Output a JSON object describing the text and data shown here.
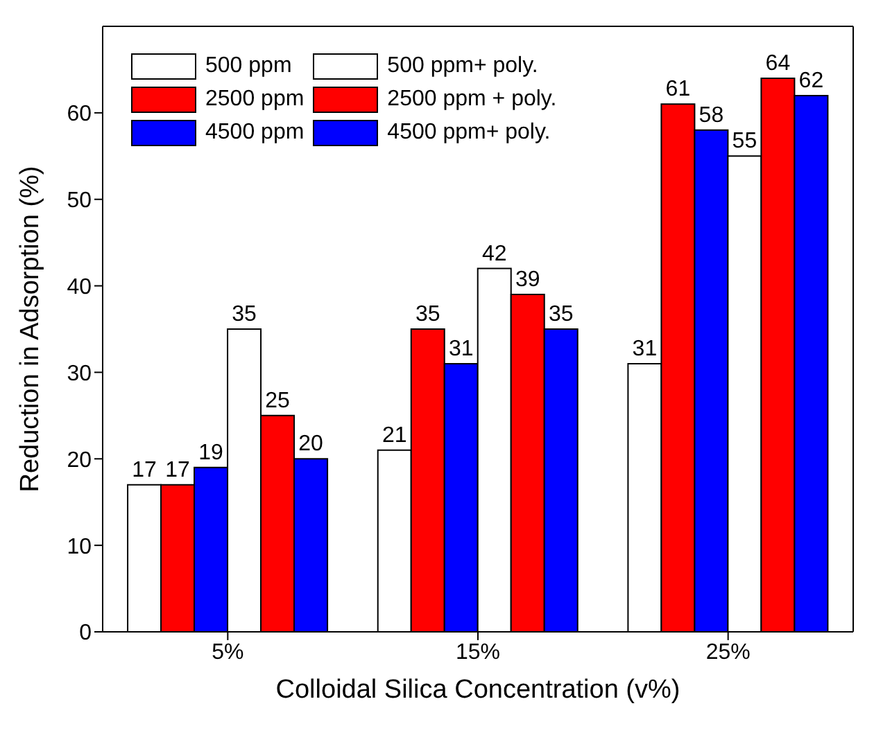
{
  "chart_data": {
    "type": "bar",
    "xlabel": "Colloidal Silica Concentration (v%)",
    "ylabel": "Reduction in Adsorption (%)",
    "categories": [
      "5%",
      "15%",
      "25%"
    ],
    "series": [
      {
        "name": "500 ppm",
        "color": "#ffffff",
        "values": [
          17,
          21,
          31
        ]
      },
      {
        "name": "2500 ppm",
        "color": "#ff0000",
        "values": [
          17,
          35,
          61
        ]
      },
      {
        "name": "4500 ppm",
        "color": "#0000ff",
        "values": [
          19,
          31,
          58
        ]
      },
      {
        "name": "500 ppm+ poly.",
        "color": "#ffffff",
        "values": [
          35,
          42,
          55
        ]
      },
      {
        "name": "2500 ppm + poly.",
        "color": "#ff0000",
        "values": [
          25,
          39,
          64
        ]
      },
      {
        "name": "4500 ppm+ poly.",
        "color": "#0000ff",
        "values": [
          20,
          35,
          62
        ]
      }
    ],
    "ylim": [
      0,
      70
    ],
    "yticks": [
      0,
      10,
      20,
      30,
      40,
      50,
      60
    ],
    "data_labels": true,
    "legend": "top left",
    "grid": false
  }
}
